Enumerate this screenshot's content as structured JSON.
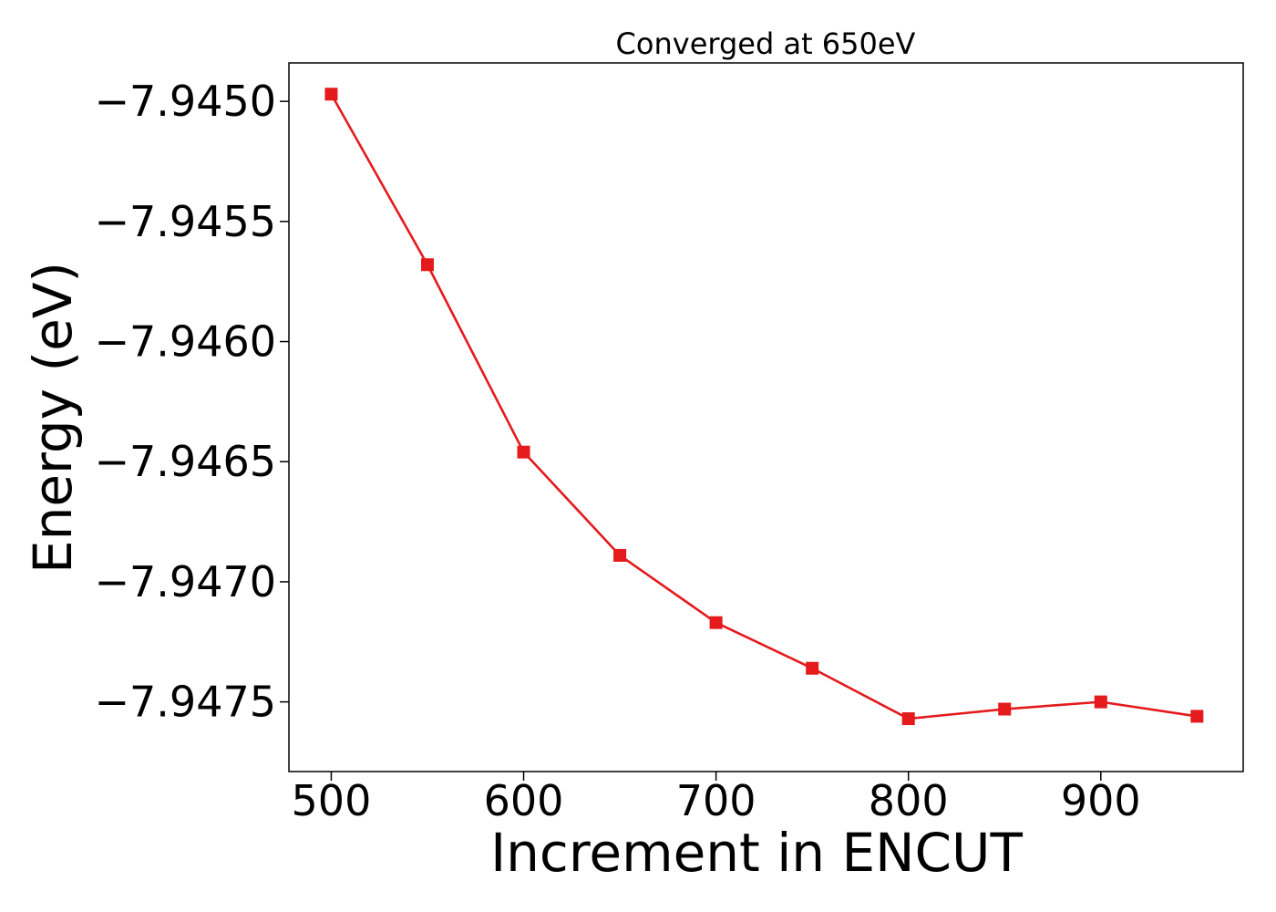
{
  "chart_data": {
    "type": "line",
    "title": "Converged at 650eV",
    "xlabel": "Increment in ENCUT",
    "ylabel": "Energy (eV)",
    "x": [
      500,
      550,
      600,
      650,
      700,
      750,
      800,
      850,
      900,
      950
    ],
    "series": [
      {
        "values": [
          -7.94497,
          -7.94568,
          -7.94646,
          -7.94689,
          -7.94717,
          -7.94736,
          -7.94757,
          -7.94753,
          -7.9475,
          -7.94756
        ],
        "color": "#e41a1c",
        "marker": "square"
      }
    ],
    "xlim": [
      478,
      974
    ],
    "ylim": [
      -7.94779,
      -7.94484
    ],
    "xticks": [
      500,
      600,
      700,
      800,
      900
    ],
    "xtick_labels": [
      "500",
      "600",
      "700",
      "800",
      "900"
    ],
    "yticks": [
      -7.945,
      -7.9455,
      -7.946,
      -7.9465,
      -7.947,
      -7.9475
    ],
    "ytick_labels": [
      "−7.9450",
      "−7.9455",
      "−7.9460",
      "−7.9465",
      "−7.9470",
      "−7.9475"
    ],
    "grid": false,
    "legend": "none"
  }
}
